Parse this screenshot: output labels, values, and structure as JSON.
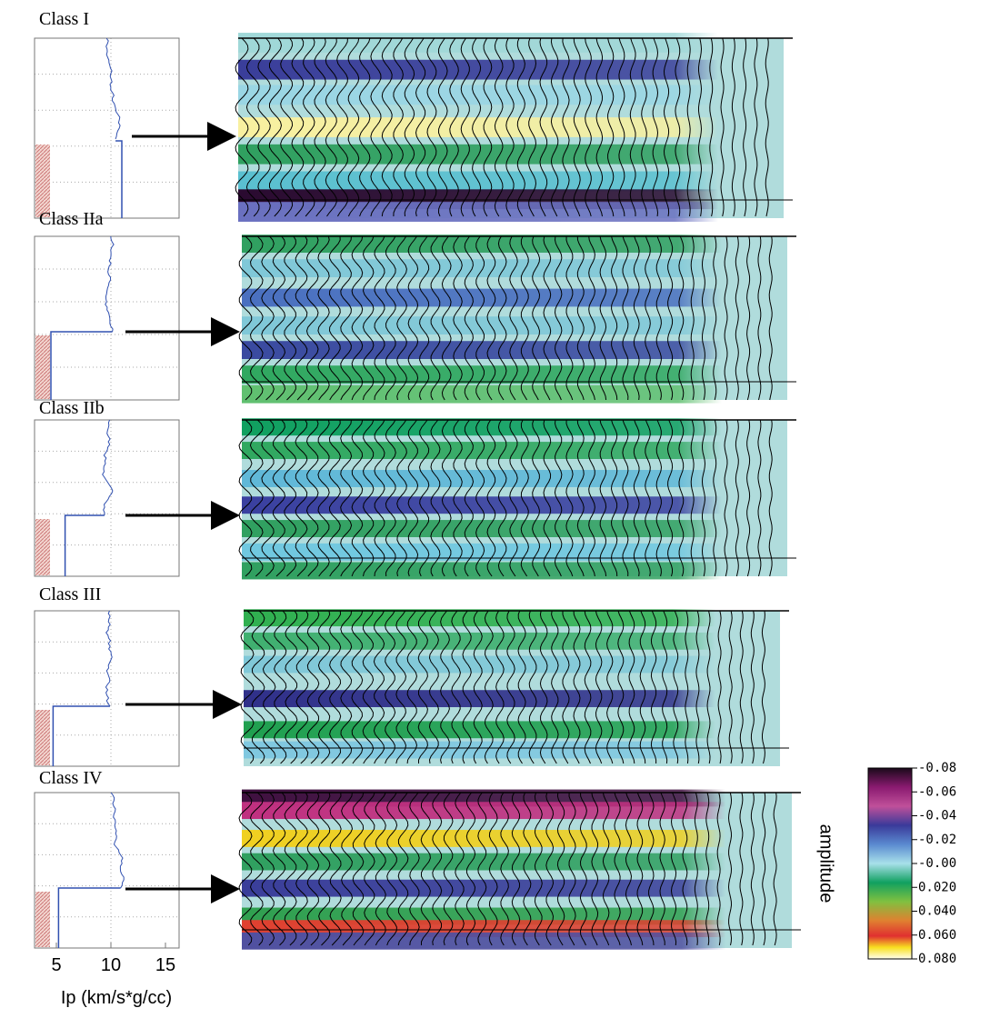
{
  "panels": [
    {
      "label": "Class I",
      "lower_ip": 11
    },
    {
      "label": "Class IIa",
      "lower_ip": 4.5
    },
    {
      "label": "Class IIb",
      "lower_ip": 5.8
    },
    {
      "label": "Class III",
      "lower_ip": 4.7
    },
    {
      "label": "Class IV",
      "lower_ip": 5.2
    }
  ],
  "ip_axis": {
    "label": "Ip (km/s*g/cc)",
    "xlim": [
      3,
      16.25
    ],
    "xticks": [
      5,
      10,
      15
    ]
  },
  "colorbar": {
    "title": "amplitude",
    "ylim": [
      -0.08,
      0.08
    ],
    "ticks": [
      {
        "value": -0.08,
        "label": "-0.08"
      },
      {
        "value": -0.06,
        "label": "-0.06"
      },
      {
        "value": -0.04,
        "label": "-0.04"
      },
      {
        "value": -0.02,
        "label": "-0.02"
      },
      {
        "value": 0,
        "label": "-0.00"
      },
      {
        "value": 0.02,
        "label": "0.020"
      },
      {
        "value": 0.04,
        "label": "0.040"
      },
      {
        "value": 0.06,
        "label": "0.060"
      },
      {
        "value": 0.08,
        "label": "0.080"
      }
    ]
  }
}
